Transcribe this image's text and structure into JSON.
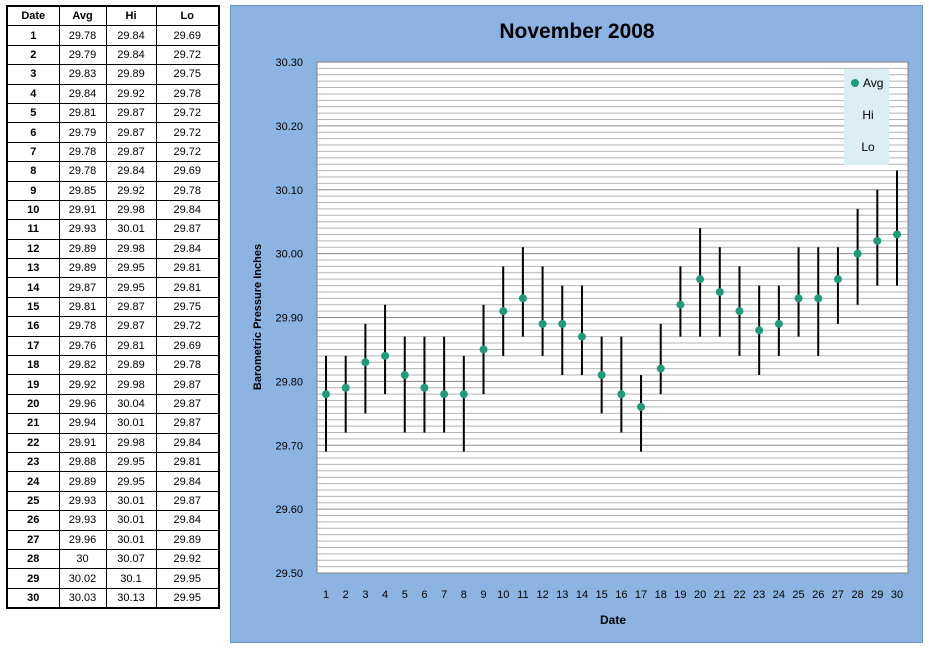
{
  "table": {
    "headers": [
      "Date",
      "Avg",
      "Hi",
      "Lo"
    ],
    "rows": [
      [
        "1",
        "29.78",
        "29.84",
        "29.69"
      ],
      [
        "2",
        "29.79",
        "29.84",
        "29.72"
      ],
      [
        "3",
        "29.83",
        "29.89",
        "29.75"
      ],
      [
        "4",
        "29.84",
        "29.92",
        "29.78"
      ],
      [
        "5",
        "29.81",
        "29.87",
        "29.72"
      ],
      [
        "6",
        "29.79",
        "29.87",
        "29.72"
      ],
      [
        "7",
        "29.78",
        "29.87",
        "29.72"
      ],
      [
        "8",
        "29.78",
        "29.84",
        "29.69"
      ],
      [
        "9",
        "29.85",
        "29.92",
        "29.78"
      ],
      [
        "10",
        "29.91",
        "29.98",
        "29.84"
      ],
      [
        "11",
        "29.93",
        "30.01",
        "29.87"
      ],
      [
        "12",
        "29.89",
        "29.98",
        "29.84"
      ],
      [
        "13",
        "29.89",
        "29.95",
        "29.81"
      ],
      [
        "14",
        "29.87",
        "29.95",
        "29.81"
      ],
      [
        "15",
        "29.81",
        "29.87",
        "29.75"
      ],
      [
        "16",
        "29.78",
        "29.87",
        "29.72"
      ],
      [
        "17",
        "29.76",
        "29.81",
        "29.69"
      ],
      [
        "18",
        "29.82",
        "29.89",
        "29.78"
      ],
      [
        "19",
        "29.92",
        "29.98",
        "29.87"
      ],
      [
        "20",
        "29.96",
        "30.04",
        "29.87"
      ],
      [
        "21",
        "29.94",
        "30.01",
        "29.87"
      ],
      [
        "22",
        "29.91",
        "29.98",
        "29.84"
      ],
      [
        "23",
        "29.88",
        "29.95",
        "29.81"
      ],
      [
        "24",
        "29.89",
        "29.95",
        "29.84"
      ],
      [
        "25",
        "29.93",
        "30.01",
        "29.87"
      ],
      [
        "26",
        "29.93",
        "30.01",
        "29.84"
      ],
      [
        "27",
        "29.96",
        "30.01",
        "29.89"
      ],
      [
        "28",
        "30",
        "30.07",
        "29.92"
      ],
      [
        "29",
        "30.02",
        "30.1",
        "29.95"
      ],
      [
        "30",
        "30.03",
        "30.13",
        "29.95"
      ]
    ]
  },
  "chart_data": {
    "type": "scatter",
    "title": "November 2008",
    "xlabel": "Date",
    "ylabel": "Barometric Pressure Inches",
    "x": [
      1,
      2,
      3,
      4,
      5,
      6,
      7,
      8,
      9,
      10,
      11,
      12,
      13,
      14,
      15,
      16,
      17,
      18,
      19,
      20,
      21,
      22,
      23,
      24,
      25,
      26,
      27,
      28,
      29,
      30
    ],
    "series": [
      {
        "name": "Avg",
        "values": [
          29.78,
          29.79,
          29.83,
          29.84,
          29.81,
          29.79,
          29.78,
          29.78,
          29.85,
          29.91,
          29.93,
          29.89,
          29.89,
          29.87,
          29.81,
          29.78,
          29.76,
          29.82,
          29.92,
          29.96,
          29.94,
          29.91,
          29.88,
          29.89,
          29.93,
          29.93,
          29.96,
          30.0,
          30.02,
          30.03
        ]
      },
      {
        "name": "Hi",
        "values": [
          29.84,
          29.84,
          29.89,
          29.92,
          29.87,
          29.87,
          29.87,
          29.84,
          29.92,
          29.98,
          30.01,
          29.98,
          29.95,
          29.95,
          29.87,
          29.87,
          29.81,
          29.89,
          29.98,
          30.04,
          30.01,
          29.98,
          29.95,
          29.95,
          30.01,
          30.01,
          30.01,
          30.07,
          30.1,
          30.13
        ]
      },
      {
        "name": "Lo",
        "values": [
          29.69,
          29.72,
          29.75,
          29.78,
          29.72,
          29.72,
          29.72,
          29.69,
          29.78,
          29.84,
          29.87,
          29.84,
          29.81,
          29.81,
          29.75,
          29.72,
          29.69,
          29.78,
          29.87,
          29.87,
          29.87,
          29.84,
          29.81,
          29.84,
          29.87,
          29.84,
          29.89,
          29.92,
          29.95,
          29.95
        ]
      }
    ],
    "ylim": [
      29.5,
      30.3
    ],
    "yticks": [
      "29.50",
      "29.60",
      "29.70",
      "29.80",
      "29.90",
      "30.00",
      "30.10",
      "30.20",
      "30.30"
    ],
    "xticks": [
      "1",
      "2",
      "3",
      "4",
      "5",
      "6",
      "7",
      "8",
      "9",
      "10",
      "11",
      "12",
      "13",
      "14",
      "15",
      "16",
      "17",
      "18",
      "19",
      "20",
      "21",
      "22",
      "23",
      "24",
      "25",
      "26",
      "27",
      "28",
      "29",
      "30"
    ],
    "grid": true,
    "legend": "top-right",
    "colors": {
      "marker": "#1f9a7a",
      "bar": "#000000",
      "frame_bg": "#8db3e2",
      "plot_bg": "#ffffff",
      "legend_bg": "#dbeef4",
      "grid": "#a6a6a6"
    }
  }
}
